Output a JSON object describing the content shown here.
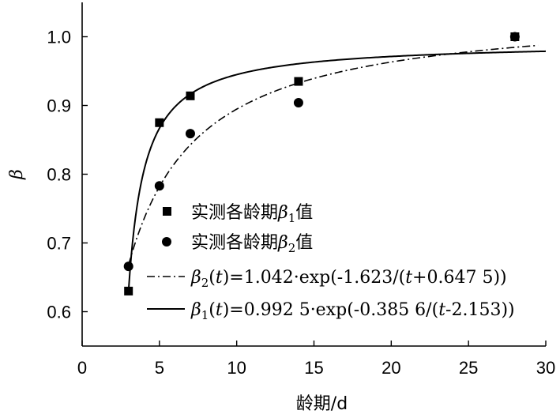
{
  "chart_data": {
    "type": "scatter",
    "xlabel": "龄期/d",
    "ylabel": "β",
    "xlim": [
      0,
      30
    ],
    "ylim": [
      0.55,
      1.05
    ],
    "x_ticks": [
      0,
      5,
      10,
      15,
      20,
      25,
      30
    ],
    "y_ticks": [
      0.6,
      0.7,
      0.8,
      0.9,
      1.0
    ],
    "x_tick_labels": [
      "0",
      "5",
      "10",
      "15",
      "20",
      "25",
      "30"
    ],
    "y_tick_labels": [
      "0.6",
      "0.7",
      "0.8",
      "0.9",
      "1.0"
    ],
    "grid": false,
    "legend_position": "center-right",
    "series": [
      {
        "name": "实测各龄期β1值",
        "kind": "points",
        "marker": "square",
        "points": [
          [
            3,
            0.63
          ],
          [
            5,
            0.875
          ],
          [
            7,
            0.914
          ],
          [
            14,
            0.935
          ],
          [
            28,
            1.0
          ]
        ]
      },
      {
        "name": "实测各龄期β2值",
        "kind": "points",
        "marker": "circle",
        "points": [
          [
            3,
            0.666
          ],
          [
            5,
            0.783
          ],
          [
            7,
            0.859
          ],
          [
            14,
            0.904
          ],
          [
            28,
            1.0
          ]
        ]
      },
      {
        "name": "β2(t)=1.042·exp(-1.623/(t+0.647 5))",
        "kind": "curve",
        "style": "dashdot",
        "formula": {
          "a": 1.042,
          "b": 1.623,
          "c": 0.6475
        },
        "x_range": [
          3,
          29.5
        ]
      },
      {
        "name": "β1(t)=0.992 5·exp(-0.385 6/(t-2.153))",
        "kind": "curve",
        "style": "solid",
        "formula": {
          "a": 0.9925,
          "b": 0.3856,
          "c": -2.153
        },
        "x_range": [
          3,
          30
        ]
      }
    ],
    "legend_entries": [
      {
        "marker": "square",
        "parts": [
          [
            "实测各龄期",
            "n"
          ],
          [
            "β",
            "i"
          ],
          [
            "1",
            "sub"
          ],
          [
            "值",
            "n"
          ]
        ]
      },
      {
        "marker": "circle",
        "parts": [
          [
            "实测各龄期",
            "n"
          ],
          [
            "β",
            "i"
          ],
          [
            "2",
            "sub"
          ],
          [
            "值",
            "n"
          ]
        ]
      },
      {
        "marker": "dashdot",
        "parts": [
          [
            "β",
            "i"
          ],
          [
            "2",
            "sub"
          ],
          [
            "(",
            "n"
          ],
          [
            "t",
            "i"
          ],
          [
            ")=1.042·exp(-1.623/(",
            "n"
          ],
          [
            "t",
            "i"
          ],
          [
            "+0.647 5))",
            "n"
          ]
        ]
      },
      {
        "marker": "solid",
        "parts": [
          [
            "β",
            "i"
          ],
          [
            "1",
            "sub"
          ],
          [
            "(",
            "n"
          ],
          [
            "t",
            "i"
          ],
          [
            ")=0.992 5·exp(-0.385 6/(",
            "n"
          ],
          [
            "t",
            "i"
          ],
          [
            "-2.153))",
            "n"
          ]
        ]
      }
    ]
  }
}
